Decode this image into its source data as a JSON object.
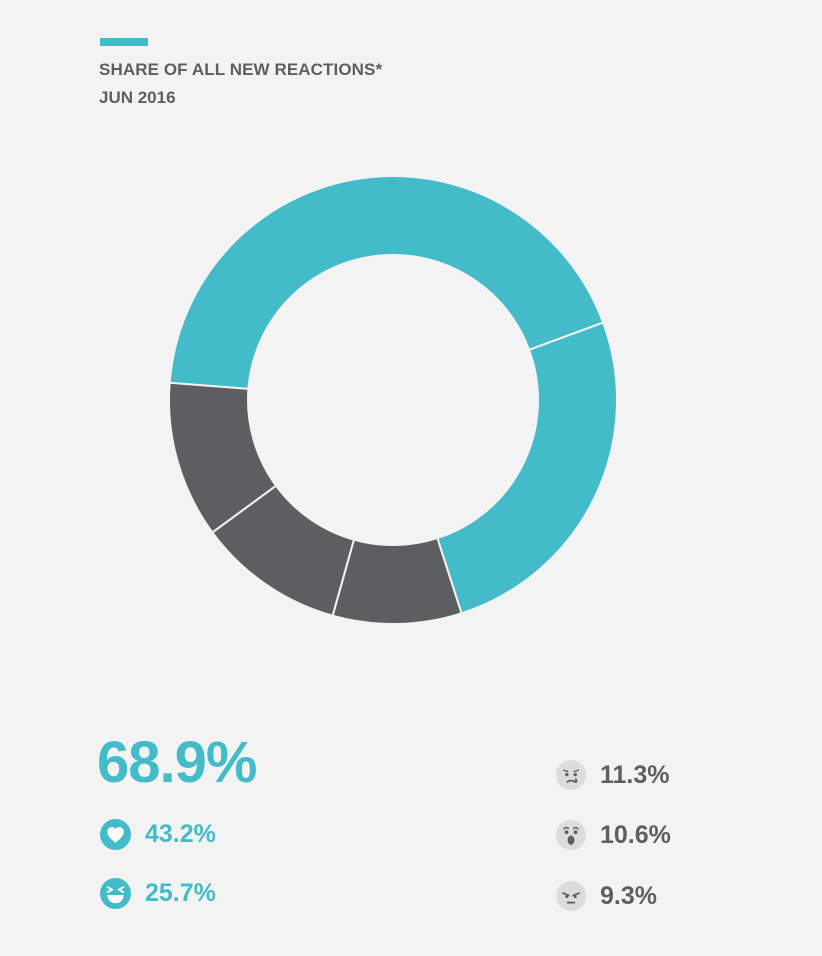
{
  "header": {
    "title": "SHARE OF ALL NEW REACTIONS*",
    "subtitle": "JUN 2016"
  },
  "colors": {
    "accent": "#44bbc8",
    "dark": "#5d5e60",
    "background": "#f3f3f3"
  },
  "chart_data": {
    "type": "pie",
    "variant": "donut",
    "title": "SHARE OF ALL NEW REACTIONS*",
    "subtitle": "JUN 2016",
    "unit": "%",
    "total_highlight": "68.9%",
    "slices": [
      {
        "icon": "heart-icon",
        "value": 43.2,
        "label": "43.2%",
        "color": "#44bbc8"
      },
      {
        "icon": "haha-icon",
        "value": 25.7,
        "label": "25.7%",
        "color": "#44bbc8"
      },
      {
        "icon": "angry-icon",
        "value": 9.3,
        "label": "9.3%",
        "color": "#5d5e60"
      },
      {
        "icon": "wow-icon",
        "value": 10.6,
        "label": "10.6%",
        "color": "#5d5e60"
      },
      {
        "icon": "sad-icon",
        "value": 11.3,
        "label": "11.3%",
        "color": "#5d5e60"
      }
    ]
  }
}
